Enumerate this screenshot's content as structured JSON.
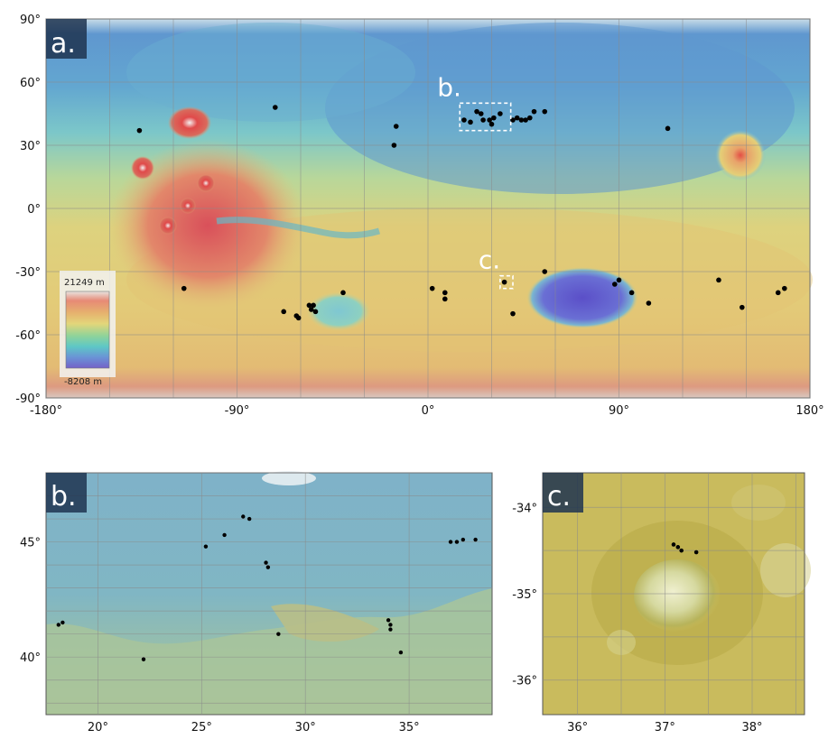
{
  "panel_a": {
    "tag": "a.",
    "x_ticks": [
      "-180°",
      "-90°",
      "0°",
      "90°",
      "180°"
    ],
    "y_ticks": [
      "90°",
      "60°",
      "30°",
      "0°",
      "-30°",
      "-60°",
      "-90°"
    ],
    "x_range": [
      -180,
      180
    ],
    "y_range": [
      -90,
      90
    ],
    "colorbar": {
      "max_label": "21249 m",
      "min_label": "-8208 m"
    },
    "box_labels": {
      "b": "b.",
      "c": "c."
    },
    "box_b": {
      "lon": [
        15,
        39
      ],
      "lat": [
        37,
        50
      ]
    },
    "box_c": {
      "lon": [
        34,
        40
      ],
      "lat": [
        -38,
        -32
      ]
    },
    "sites": [
      [
        -136,
        37
      ],
      [
        -115,
        -38
      ],
      [
        -72,
        48
      ],
      [
        -68,
        -49
      ],
      [
        -62,
        -51
      ],
      [
        -61,
        -52
      ],
      [
        -56,
        -46
      ],
      [
        -55,
        -48
      ],
      [
        -54,
        -46
      ],
      [
        -53,
        -49
      ],
      [
        -40,
        -40
      ],
      [
        -15,
        39
      ],
      [
        -16,
        30
      ],
      [
        2,
        -38
      ],
      [
        8,
        -40
      ],
      [
        8,
        -43
      ],
      [
        17,
        42
      ],
      [
        20,
        41
      ],
      [
        23,
        46
      ],
      [
        25,
        45
      ],
      [
        26,
        42
      ],
      [
        29,
        42
      ],
      [
        30,
        40
      ],
      [
        31,
        43
      ],
      [
        34,
        45
      ],
      [
        40,
        42
      ],
      [
        42,
        43
      ],
      [
        44,
        42
      ],
      [
        46,
        42
      ],
      [
        48,
        43
      ],
      [
        50,
        46
      ],
      [
        55,
        46
      ],
      [
        55,
        -30
      ],
      [
        36,
        -35
      ],
      [
        40,
        -50
      ],
      [
        88,
        -36
      ],
      [
        90,
        -34
      ],
      [
        96,
        -40
      ],
      [
        104,
        -45
      ],
      [
        113,
        38
      ],
      [
        137,
        -34
      ],
      [
        148,
        -47
      ],
      [
        168,
        -38
      ],
      [
        165,
        -40
      ]
    ]
  },
  "panel_b": {
    "tag": "b.",
    "x_ticks": [
      "20°",
      "25°",
      "30°",
      "35°"
    ],
    "y_ticks": [
      "45°",
      "40°"
    ],
    "x_range": [
      17.5,
      39
    ],
    "y_range": [
      37.5,
      48
    ],
    "sites": [
      [
        18.1,
        41.4
      ],
      [
        18.3,
        41.5
      ],
      [
        22.2,
        39.9
      ],
      [
        25.2,
        44.8
      ],
      [
        26.1,
        45.3
      ],
      [
        27.0,
        46.1
      ],
      [
        27.3,
        46.0
      ],
      [
        28.1,
        44.1
      ],
      [
        28.2,
        43.9
      ],
      [
        28.7,
        41.0
      ],
      [
        34.0,
        41.6
      ],
      [
        34.1,
        41.4
      ],
      [
        34.1,
        41.2
      ],
      [
        34.6,
        40.2
      ],
      [
        37.0,
        45.0
      ],
      [
        37.3,
        45.0
      ],
      [
        37.6,
        45.1
      ],
      [
        38.2,
        45.1
      ]
    ]
  },
  "panel_c": {
    "tag": "c.",
    "x_ticks": [
      "36°",
      "37°",
      "38°"
    ],
    "y_ticks": [
      "-34°",
      "-35°",
      "-36°"
    ],
    "x_range": [
      35.6,
      38.6
    ],
    "y_range": [
      -36.4,
      -33.6
    ],
    "sites": [
      [
        37.1,
        -34.43
      ],
      [
        37.15,
        -34.46
      ],
      [
        37.19,
        -34.5
      ],
      [
        37.36,
        -34.52
      ]
    ]
  }
}
